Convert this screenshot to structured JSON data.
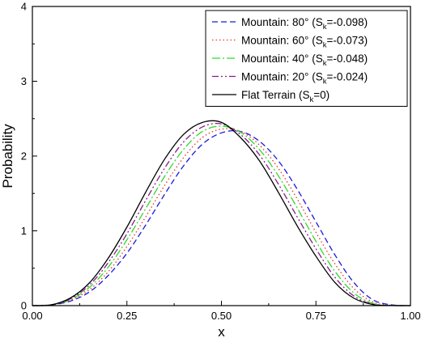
{
  "chart_data": {
    "type": "line",
    "title": "",
    "xlabel": "x",
    "ylabel": "Probability",
    "xlim": [
      0.0,
      1.0
    ],
    "ylim": [
      0,
      4
    ],
    "x_ticks": [
      0.0,
      0.25,
      0.5,
      0.75,
      1.0
    ],
    "x_tick_labels": [
      "0.00",
      "0.25",
      "0.50",
      "0.75",
      "1.00"
    ],
    "y_ticks": [
      0,
      1,
      2,
      3,
      4
    ],
    "y_tick_labels": [
      "0",
      "1",
      "2",
      "3",
      "4"
    ],
    "grid": false,
    "legend_position": "top-right",
    "x": [
      0.0,
      0.05,
      0.1,
      0.15,
      0.2,
      0.25,
      0.3,
      0.35,
      0.4,
      0.45,
      0.5,
      0.55,
      0.6,
      0.65,
      0.7,
      0.75,
      0.8,
      0.85,
      0.9,
      0.95,
      1.0
    ],
    "series": [
      {
        "name": "Mountain: 80°",
        "name_main": "Mountain: 80° (S",
        "name_sub": "k",
        "name_rest": "=-0.098)",
        "color": "#1a1adc",
        "dash": "7,4",
        "values": [
          0,
          0.01,
          0.06,
          0.18,
          0.4,
          0.7,
          1.08,
          1.49,
          1.87,
          2.16,
          2.31,
          2.33,
          2.2,
          1.94,
          1.56,
          1.12,
          0.68,
          0.31,
          0.08,
          0.01,
          0
        ]
      },
      {
        "name": "Mountain: 60°",
        "name_main": "Mountain: 60° (S",
        "name_sub": "k",
        "name_rest": "=-0.073)",
        "color": "#e8332a",
        "dash": "1.5,3",
        "values": [
          0,
          0.01,
          0.07,
          0.21,
          0.45,
          0.79,
          1.19,
          1.61,
          1.98,
          2.25,
          2.36,
          2.33,
          2.15,
          1.84,
          1.43,
          0.98,
          0.56,
          0.23,
          0.05,
          0.005,
          0
        ]
      },
      {
        "name": "Mountain: 40°",
        "name_main": "Mountain: 40° (S",
        "name_sub": "k",
        "name_rest": "=-0.048)",
        "color": "#2ddb2d",
        "dash": "10,3,2,3",
        "values": [
          0,
          0.01,
          0.08,
          0.24,
          0.51,
          0.88,
          1.3,
          1.73,
          2.09,
          2.33,
          2.4,
          2.32,
          2.09,
          1.74,
          1.31,
          0.86,
          0.46,
          0.17,
          0.03,
          0.003,
          0
        ]
      },
      {
        "name": "Mountain: 20°",
        "name_main": "Mountain: 20° (S",
        "name_sub": "k",
        "name_rest": "=-0.024)",
        "color": "#8b1a8b",
        "dash": "8,3,2,3,2,3",
        "values": [
          0,
          0.01,
          0.09,
          0.27,
          0.57,
          0.96,
          1.41,
          1.84,
          2.19,
          2.39,
          2.43,
          2.29,
          2.02,
          1.63,
          1.19,
          0.76,
          0.38,
          0.13,
          0.02,
          0.002,
          0
        ]
      },
      {
        "name": "Flat Terrain (Sk=0)",
        "name_main": "Flat Terrain (S",
        "name_sub": "k",
        "name_rest": "=0)",
        "color": "#000000",
        "dash": "",
        "values": [
          0,
          0.01,
          0.1,
          0.3,
          0.63,
          1.05,
          1.52,
          1.96,
          2.29,
          2.45,
          2.45,
          2.25,
          1.94,
          1.52,
          1.07,
          0.66,
          0.31,
          0.1,
          0.015,
          0.001,
          0
        ]
      }
    ]
  }
}
